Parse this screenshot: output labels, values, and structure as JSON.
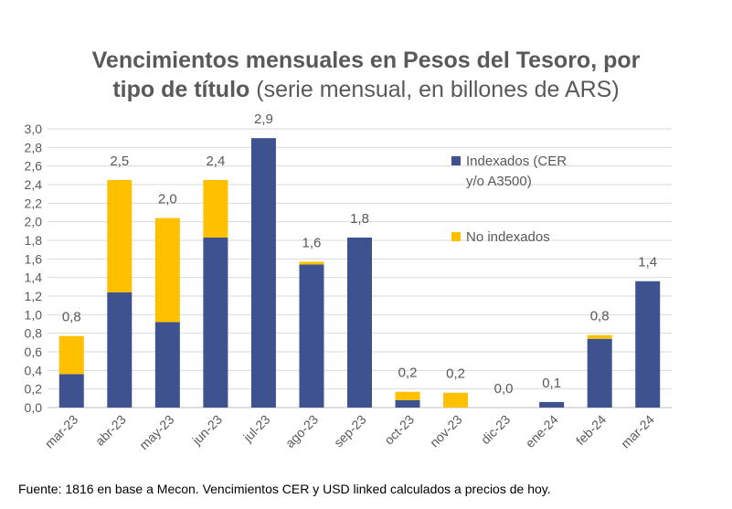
{
  "title": {
    "line1": "Vencimientos mensuales en Pesos del Tesoro, por",
    "line2_bold": "tipo de título",
    "line2_normal": " (serie mensual, en billones de ARS)"
  },
  "source": "Fuente: 1816 en base a  Mecon. Vencimientos CER y USD linked calculados a precios de hoy.",
  "colors": {
    "indexed": "#3F5290",
    "non_indexed": "#FFC000",
    "text": "#595959",
    "grid": "#D9D9D9"
  },
  "chart_data": {
    "type": "bar",
    "stacked": true,
    "categories": [
      "mar-23",
      "abr-23",
      "may-23",
      "jun-23",
      "jul-23",
      "ago-23",
      "sep-23",
      "oct-23",
      "nov-23",
      "dic-23",
      "ene-24",
      "feb-24",
      "mar-24"
    ],
    "series": [
      {
        "name": "Indexados (CER y/o A3500)",
        "legend_lines": [
          "Indexados (CER",
          "y/o A3500)"
        ],
        "values": [
          0.36,
          1.24,
          0.92,
          1.83,
          2.9,
          1.54,
          1.83,
          0.08,
          0.0,
          0.0,
          0.06,
          0.74,
          1.36
        ]
      },
      {
        "name": "No indexados",
        "legend_lines": [
          "No indexados"
        ],
        "values": [
          0.41,
          1.21,
          1.12,
          0.62,
          0.0,
          0.03,
          0.0,
          0.09,
          0.16,
          0.0,
          0.0,
          0.04,
          0.0
        ]
      }
    ],
    "data_labels": [
      "0,8",
      "2,5",
      "2,0",
      "2,4",
      "2,9",
      "1,6",
      "1,8",
      "0,2",
      "0,2",
      "0,0",
      "0,1",
      "0,8",
      "1,4"
    ],
    "y_ticks": [
      "0,0",
      "0,2",
      "0,4",
      "0,6",
      "0,8",
      "1,0",
      "1,2",
      "1,4",
      "1,6",
      "1,8",
      "2,0",
      "2,2",
      "2,4",
      "2,6",
      "2,8",
      "3,0"
    ],
    "ylim": [
      0,
      3.0
    ],
    "grid": true,
    "legend_position": "top-right"
  }
}
